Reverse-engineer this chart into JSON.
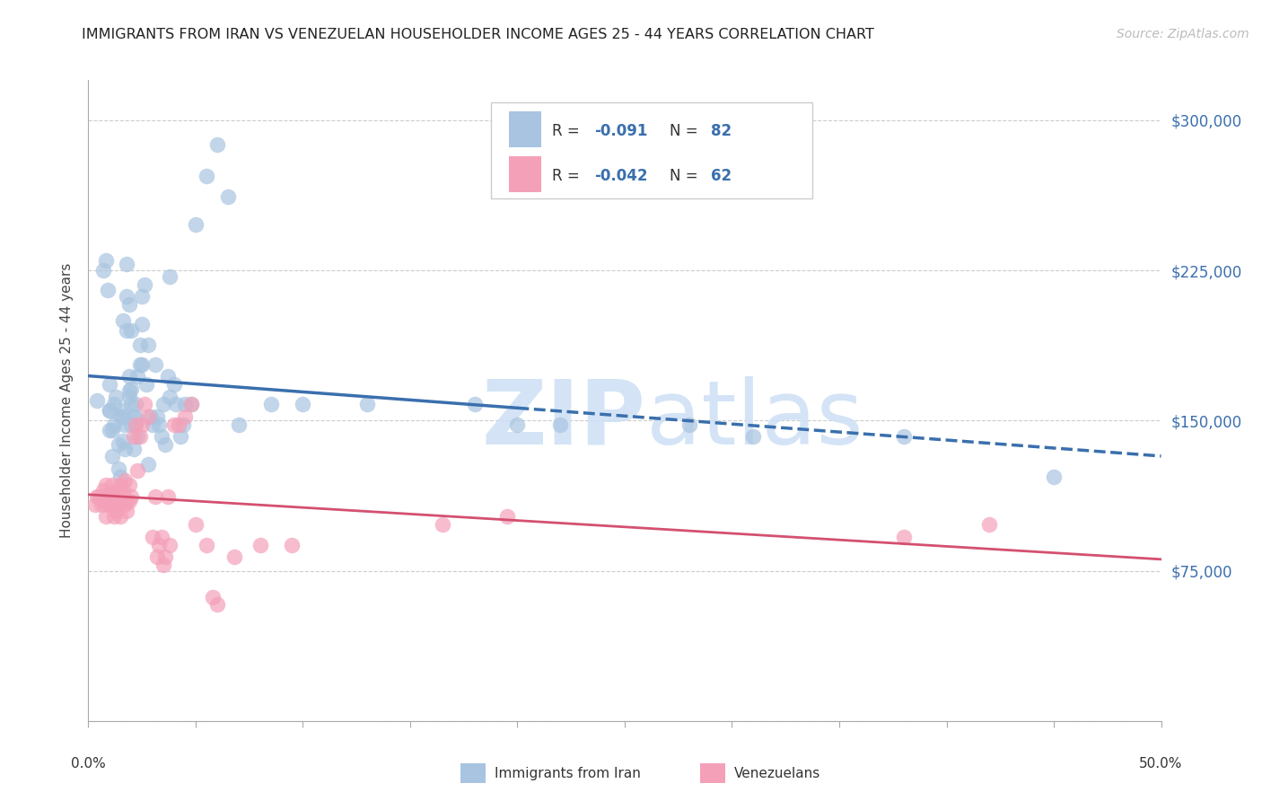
{
  "title": "IMMIGRANTS FROM IRAN VS VENEZUELAN HOUSEHOLDER INCOME AGES 25 - 44 YEARS CORRELATION CHART",
  "source": "Source: ZipAtlas.com",
  "ylabel": "Householder Income Ages 25 - 44 years",
  "xlim": [
    0.0,
    0.5
  ],
  "ylim": [
    0,
    320000
  ],
  "yticks": [
    0,
    75000,
    150000,
    225000,
    300000
  ],
  "ytick_labels": [
    "",
    "$75,000",
    "$150,000",
    "$225,000",
    "$300,000"
  ],
  "xticks": [
    0.0,
    0.05,
    0.1,
    0.15,
    0.2,
    0.25,
    0.3,
    0.35,
    0.4,
    0.45,
    0.5
  ],
  "iran_R": -0.091,
  "iran_N": 82,
  "venezuela_R": -0.042,
  "venezuela_N": 62,
  "iran_color": "#a8c4e0",
  "iran_line_color": "#3a6fad",
  "venezuela_color": "#f4a0b8",
  "venezuela_line_color": "#d45070",
  "iran_scatter_x": [
    0.004,
    0.007,
    0.008,
    0.009,
    0.01,
    0.01,
    0.01,
    0.011,
    0.012,
    0.012,
    0.013,
    0.014,
    0.014,
    0.015,
    0.015,
    0.016,
    0.016,
    0.016,
    0.017,
    0.017,
    0.018,
    0.018,
    0.018,
    0.019,
    0.019,
    0.019,
    0.02,
    0.02,
    0.02,
    0.02,
    0.021,
    0.021,
    0.022,
    0.022,
    0.022,
    0.023,
    0.023,
    0.024,
    0.024,
    0.025,
    0.025,
    0.025,
    0.026,
    0.027,
    0.028,
    0.028,
    0.029,
    0.03,
    0.031,
    0.032,
    0.033,
    0.034,
    0.035,
    0.036,
    0.037,
    0.038,
    0.038,
    0.04,
    0.041,
    0.043,
    0.044,
    0.045,
    0.048,
    0.05,
    0.055,
    0.06,
    0.065,
    0.07,
    0.085,
    0.1,
    0.13,
    0.18,
    0.2,
    0.22,
    0.28,
    0.31,
    0.38,
    0.45,
    0.01,
    0.011,
    0.016,
    0.019
  ],
  "iran_scatter_y": [
    160000,
    225000,
    230000,
    215000,
    145000,
    155000,
    168000,
    132000,
    148000,
    158000,
    162000,
    126000,
    138000,
    122000,
    152000,
    140000,
    152000,
    200000,
    136000,
    148000,
    195000,
    212000,
    228000,
    162000,
    172000,
    208000,
    148000,
    158000,
    166000,
    195000,
    136000,
    152000,
    148000,
    158000,
    152000,
    142000,
    172000,
    178000,
    188000,
    178000,
    198000,
    212000,
    218000,
    168000,
    128000,
    188000,
    152000,
    148000,
    178000,
    152000,
    148000,
    142000,
    158000,
    138000,
    172000,
    162000,
    222000,
    168000,
    158000,
    142000,
    148000,
    158000,
    158000,
    248000,
    272000,
    288000,
    262000,
    148000,
    158000,
    158000,
    158000,
    158000,
    148000,
    148000,
    148000,
    142000,
    142000,
    122000,
    155000,
    145000,
    155000,
    165000
  ],
  "venezuela_scatter_x": [
    0.003,
    0.004,
    0.005,
    0.006,
    0.007,
    0.007,
    0.008,
    0.008,
    0.009,
    0.009,
    0.01,
    0.01,
    0.011,
    0.011,
    0.012,
    0.012,
    0.013,
    0.013,
    0.014,
    0.014,
    0.015,
    0.015,
    0.016,
    0.016,
    0.017,
    0.017,
    0.018,
    0.018,
    0.019,
    0.019,
    0.02,
    0.021,
    0.022,
    0.023,
    0.024,
    0.025,
    0.026,
    0.028,
    0.03,
    0.031,
    0.032,
    0.033,
    0.034,
    0.035,
    0.036,
    0.037,
    0.038,
    0.04,
    0.042,
    0.045,
    0.048,
    0.05,
    0.055,
    0.058,
    0.06,
    0.068,
    0.08,
    0.095,
    0.165,
    0.195,
    0.38,
    0.42
  ],
  "venezuela_scatter_y": [
    108000,
    112000,
    112000,
    108000,
    110000,
    115000,
    102000,
    118000,
    108000,
    112000,
    110000,
    114000,
    108000,
    118000,
    102000,
    110000,
    105000,
    112000,
    108000,
    115000,
    118000,
    102000,
    110000,
    115000,
    120000,
    108000,
    105000,
    110000,
    110000,
    118000,
    112000,
    142000,
    148000,
    125000,
    142000,
    148000,
    158000,
    152000,
    92000,
    112000,
    82000,
    88000,
    92000,
    78000,
    82000,
    112000,
    88000,
    148000,
    148000,
    152000,
    158000,
    98000,
    88000,
    62000,
    58000,
    82000,
    88000,
    88000,
    98000,
    102000,
    92000,
    98000
  ]
}
